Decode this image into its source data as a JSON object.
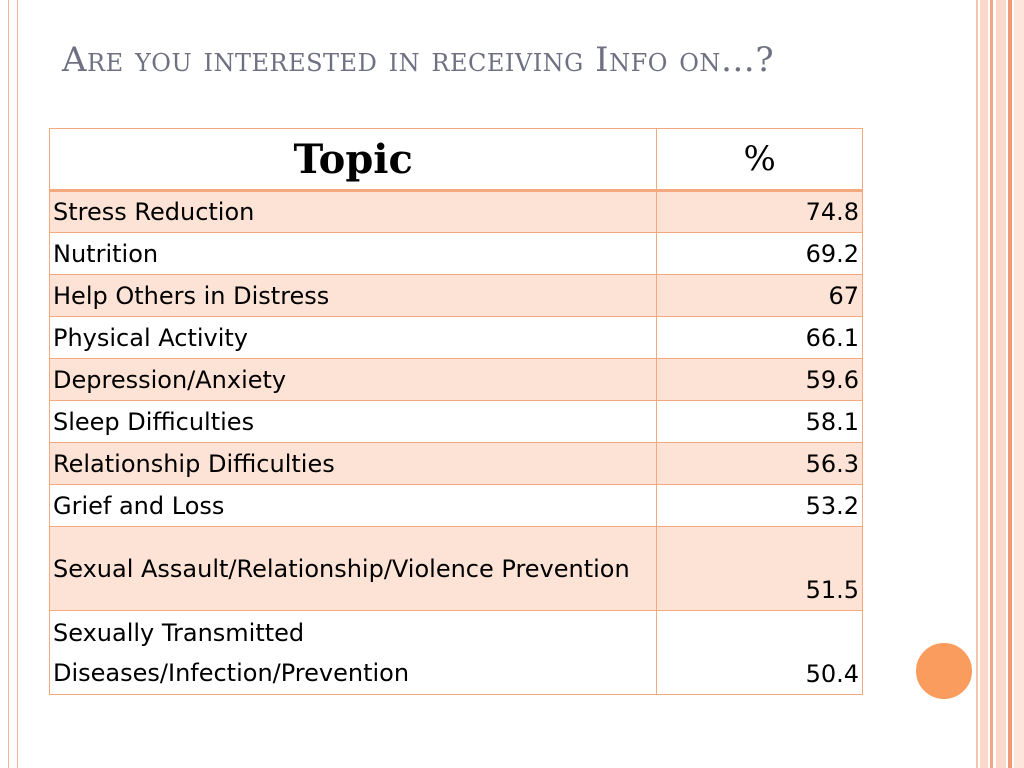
{
  "title": "Are you interested in receiving Info on…?",
  "table": {
    "headers": {
      "topic": "Topic",
      "percent": "%"
    },
    "rows": [
      {
        "topic": "Stress Reduction",
        "percent": "74.8"
      },
      {
        "topic": "Nutrition",
        "percent": "69.2"
      },
      {
        "topic": "Help Others in Distress",
        "percent": "67"
      },
      {
        "topic": "Physical Activity",
        "percent": "66.1"
      },
      {
        "topic": "Depression/Anxiety",
        "percent": "59.6"
      },
      {
        "topic": "Sleep Difficulties",
        "percent": "58.1"
      },
      {
        "topic": "Relationship Difficulties",
        "percent": "56.3"
      },
      {
        "topic": "Grief and Loss",
        "percent": "53.2"
      },
      {
        "topic": "Sexual Assault/Relationship/Violence Prevention",
        "percent": "51.5"
      },
      {
        "topic": "Sexually Transmitted Diseases/Infection/Prevention",
        "percent": "50.4"
      }
    ]
  },
  "colors": {
    "title": "#6f7183",
    "row_fill": "#fde3d5",
    "border": "#f4a87e",
    "accent_circle": "#f99c5d"
  }
}
